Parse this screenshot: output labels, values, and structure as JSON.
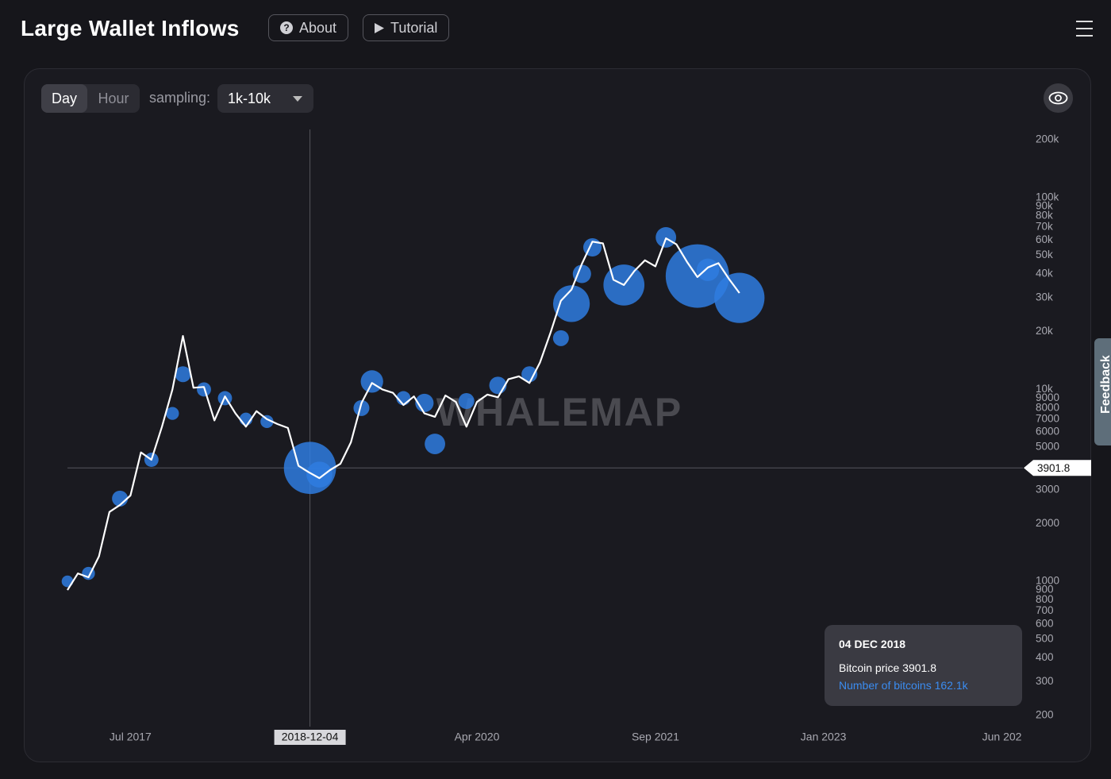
{
  "header": {
    "title": "Large Wallet Inflows",
    "buttons": [
      "About",
      "Tutorial"
    ]
  },
  "controls": {
    "intervals": [
      "Day",
      "Hour"
    ],
    "sampling_label": "sampling:",
    "sampling": "1k-10k"
  },
  "feedback": "Feedback",
  "tooltip": {
    "date": "04 DEC 2018",
    "price_name": "Bitcoin price",
    "price": 3901.8,
    "coins_name": "Number of bitcoins",
    "coins": "162.1k"
  },
  "chart_data": {
    "type": "line",
    "watermark": "WHALEMAP",
    "log_scale": true,
    "color": "#ffffff",
    "bubble_color": "#2f7de1",
    "x": [
      "2017-01",
      "2017-02",
      "2017-03",
      "2017-04",
      "2017-05",
      "2017-06",
      "2017-07",
      "2017-08",
      "2017-09",
      "2017-10",
      "2017-11",
      "2017-12",
      "2018-01",
      "2018-02",
      "2018-03",
      "2018-04",
      "2018-05",
      "2018-06",
      "2018-07",
      "2018-08",
      "2018-09",
      "2018-10",
      "2018-11",
      "2018-12",
      "2019-01",
      "2019-02",
      "2019-03",
      "2019-04",
      "2019-05",
      "2019-06",
      "2019-07",
      "2019-08",
      "2019-09",
      "2019-10",
      "2019-11",
      "2019-12",
      "2020-01",
      "2020-02",
      "2020-03",
      "2020-04",
      "2020-05",
      "2020-06",
      "2020-07",
      "2020-08",
      "2020-09",
      "2020-10",
      "2020-11",
      "2020-12",
      "2021-01",
      "2021-02",
      "2021-03",
      "2021-04",
      "2021-05",
      "2021-06",
      "2021-07",
      "2021-08",
      "2021-09",
      "2021-10",
      "2021-11",
      "2021-12",
      "2022-01",
      "2022-02",
      "2022-03",
      "2022-04",
      "2022-05"
    ],
    "values": [
      900,
      1100,
      1050,
      1350,
      2300,
      2500,
      2800,
      4700,
      4300,
      6400,
      10000,
      19000,
      10200,
      10300,
      6900,
      9200,
      7500,
      6400,
      7700,
      7000,
      6600,
      6300,
      4000,
      3700,
      3450,
      3800,
      4100,
      5300,
      8500,
      10800,
      10000,
      9600,
      8300,
      9200,
      7500,
      7200,
      9300,
      8600,
      6400,
      8600,
      9400,
      9100,
      11300,
      11700,
      10800,
      13800,
      19700,
      29000,
      33100,
      45200,
      58900,
      57700,
      37300,
      35000,
      41500,
      47100,
      43800,
      61300,
      57000,
      46300,
      38500,
      43200,
      45500,
      37700,
      31800
    ],
    "bubble_x": [
      "2017-01",
      "2017-03",
      "2017-06",
      "2017-09",
      "2017-11",
      "2017-12",
      "2018-02",
      "2018-04",
      "2018-06",
      "2018-08",
      "2018-12-04",
      "2019-01",
      "2019-05",
      "2019-06",
      "2019-09",
      "2019-11",
      "2019-12",
      "2020-03",
      "2020-06",
      "2020-09",
      "2020-12",
      "2021-01",
      "2021-02",
      "2021-03",
      "2021-06",
      "2021-10",
      "2022-01",
      "2022-02",
      "2022-05"
    ],
    "bubble_values": [
      1000,
      1100,
      2700,
      4300,
      7500,
      12000,
      10000,
      9000,
      7000,
      6800,
      3901.8,
      3600,
      8000,
      11000,
      9000,
      8500,
      5200,
      8700,
      10500,
      12000,
      18500,
      28000,
      40000,
      55000,
      35000,
      62000,
      39000,
      42000,
      30000
    ],
    "bubble_sizes": [
      8000,
      10000,
      15000,
      12000,
      10000,
      15000,
      12000,
      12000,
      10000,
      10000,
      162100,
      40000,
      15000,
      30000,
      12000,
      20000,
      25000,
      15000,
      18000,
      15000,
      15000,
      80000,
      20000,
      20000,
      100000,
      25000,
      240000,
      30000,
      150000
    ],
    "crosshair": {
      "x": "2018-12-04",
      "y": 3901.8
    },
    "xlim": [
      "2017-01",
      "2024-08"
    ],
    "xticks": [
      {
        "value": "2017-07",
        "label": "Jul 2017"
      },
      {
        "value": "2020-04",
        "label": "Apr 2020"
      },
      {
        "value": "2021-09",
        "label": "Sep 2021"
      },
      {
        "value": "2023-01",
        "label": "Jan 2023"
      },
      {
        "value": "2024-06",
        "label": "Jun 202"
      }
    ],
    "ylim": [
      200,
      200000
    ],
    "yticks": [
      200,
      300,
      400,
      500,
      600,
      700,
      800,
      900,
      1000,
      2000,
      3000,
      4000,
      5000,
      6000,
      7000,
      8000,
      9000,
      {
        "value": 10000,
        "label": "10k"
      },
      {
        "value": 20000,
        "label": "20k"
      },
      {
        "value": 30000,
        "label": "30k"
      },
      {
        "value": 40000,
        "label": "40k"
      },
      {
        "value": 50000,
        "label": "50k"
      },
      {
        "value": 60000,
        "label": "60k"
      },
      {
        "value": 70000,
        "label": "70k"
      },
      {
        "value": 80000,
        "label": "80k"
      },
      {
        "value": 90000,
        "label": "90k"
      },
      {
        "value": 100000,
        "label": "100k"
      },
      {
        "value": 200000,
        "label": "200k"
      }
    ]
  }
}
